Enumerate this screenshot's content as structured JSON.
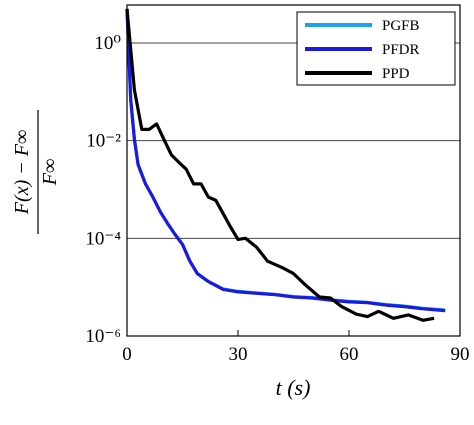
{
  "chart_data": {
    "type": "line",
    "x_label": "t (s)",
    "y_label_numerator": "F(x) − F∞",
    "y_label_denominator": "F∞",
    "log_y": true,
    "grid": true,
    "legend_position": "upper right",
    "xlim": [
      0,
      90
    ],
    "xticks": [
      0,
      30,
      60,
      90
    ],
    "ylim": [
      1e-06,
      6
    ],
    "yticks": [
      {
        "value": 1,
        "label": "10⁰"
      },
      {
        "value": 0.01,
        "label": "10⁻²"
      },
      {
        "value": 0.0001,
        "label": "10⁻⁴"
      },
      {
        "value": 1e-06,
        "label": "10⁻⁶"
      }
    ],
    "series": [
      {
        "name": "PGFB",
        "color": "#1aa3e8",
        "x": [
          0,
          1,
          2,
          3,
          5,
          7,
          9,
          11,
          13,
          15,
          17,
          19,
          22,
          26,
          30,
          35,
          40,
          45,
          50,
          55,
          60,
          65,
          70,
          75,
          80,
          86
        ],
        "values": [
          5,
          0.07,
          0.011,
          0.0033,
          0.0013,
          0.0007,
          0.00035,
          0.0002,
          0.00012,
          7.5e-05,
          3.4e-05,
          1.9e-05,
          1.3e-05,
          9.2e-06,
          8.2e-06,
          7.6e-06,
          7.1e-06,
          6.4e-06,
          6.1e-06,
          5.5e-06,
          5.1e-06,
          4.9e-06,
          4.4e-06,
          4.1e-06,
          3.7e-06,
          3.4e-06
        ]
      },
      {
        "name": "PFDR",
        "color": "#1a1ae0",
        "x": [
          0,
          1,
          2,
          3,
          5,
          7,
          9,
          11,
          13,
          15,
          17,
          19,
          22,
          26,
          30,
          35,
          40,
          45,
          50,
          55,
          60,
          65,
          70,
          75,
          80,
          86
        ],
        "values": [
          5,
          0.07,
          0.0105,
          0.0032,
          0.0013,
          0.0007,
          0.00035,
          0.0002,
          0.00012,
          7.5e-05,
          3.4e-05,
          1.9e-05,
          1.3e-05,
          9e-06,
          8e-06,
          7.5e-06,
          7e-06,
          6.3e-06,
          6e-06,
          5.4e-06,
          5e-06,
          4.8e-06,
          4.3e-06,
          4e-06,
          3.6e-06,
          3.3e-06
        ]
      },
      {
        "name": "PPD",
        "color": "#000000",
        "x": [
          0,
          2,
          4,
          6,
          8,
          10,
          12,
          14,
          16,
          18,
          20,
          22,
          24,
          26,
          28,
          30,
          32,
          35,
          38,
          42,
          45,
          48,
          52,
          55,
          58,
          62,
          65,
          68,
          72,
          76,
          80,
          83
        ],
        "values": [
          5,
          0.11,
          0.017,
          0.017,
          0.022,
          0.0105,
          0.0051,
          0.0036,
          0.0026,
          0.0013,
          0.0013,
          0.0007,
          0.0006,
          0.00032,
          0.00017,
          9.5e-05,
          0.0001,
          6.6e-05,
          3.4e-05,
          2.5e-05,
          1.9e-05,
          1.15e-05,
          6.3e-06,
          6e-06,
          4e-06,
          2.8e-06,
          2.5e-06,
          3.2e-06,
          2.3e-06,
          2.7e-06,
          2.1e-06,
          2.3e-06
        ]
      }
    ]
  }
}
